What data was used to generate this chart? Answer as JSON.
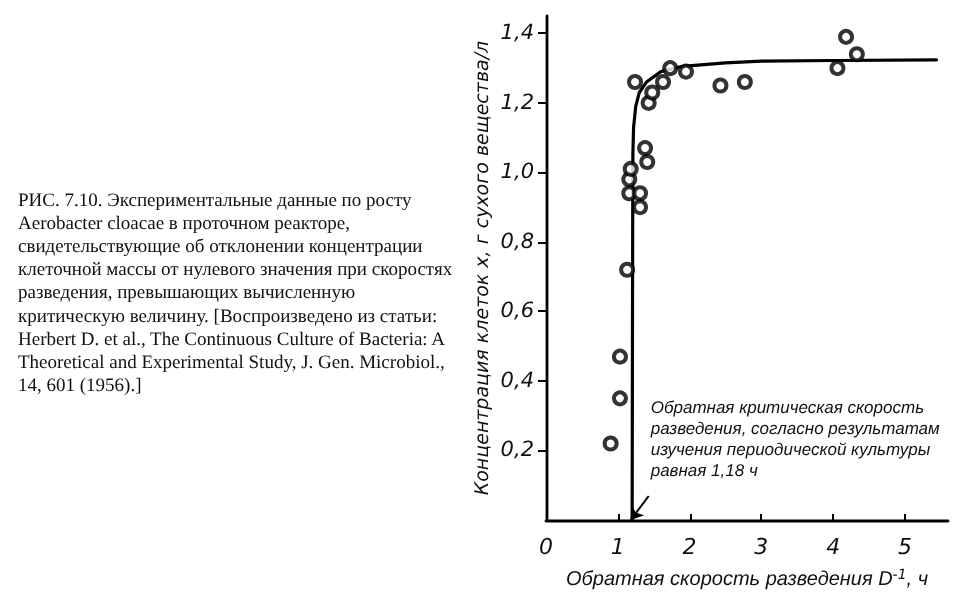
{
  "chart_data": {
    "type": "scatter",
    "title": "РИС. 7.10. Экспериментальные данные по росту Aerobacter cloacae в проточном реакторе, свидетельствующие об отклонении концентрации клеточной массы от нулевого значения при скоростях разведения, превышающих вычисленную критическую величину. [Воспроизведено из статьи: Herbert D. et al., The Continuous Culture of Bacteria: A Theoretical and Experimental Study, J. Gen. Microbiol., 14, 601 (1956).]",
    "xlabel": "Обратная скорость разведения D$^{-1}$, ч",
    "ylabel": "Концентрация клеток x, г сухого вещества/л",
    "annotations": [
      {
        "text": "Обратная критическая скорость разведения, согласно результатам изучения периодической культуры равная 1,18 ч",
        "x": 1.18,
        "y": 0
      }
    ],
    "xlim": [
      0,
      5.6
    ],
    "xticks": [
      0,
      1,
      2,
      3,
      4,
      5
    ],
    "ylim": [
      0,
      1.45
    ],
    "yticks": [
      {
        "value": 0.2,
        "label": "0,2"
      },
      {
        "value": 0.4,
        "label": "0,4"
      },
      {
        "value": 0.6,
        "label": "0,6"
      },
      {
        "value": 0.8,
        "label": "0,8"
      },
      {
        "value": 1.0,
        "label": "1,0"
      },
      {
        "value": 1.2,
        "label": "1,2"
      },
      {
        "value": 1.4,
        "label": "1,4"
      }
    ],
    "grid": false,
    "marker": "circle",
    "series": [
      {
        "color": "#000000",
        "x": [
          0.9,
          1.03,
          1.03,
          1.13,
          1.16,
          1.16,
          1.18,
          1.24,
          1.31,
          1.31,
          1.38,
          1.41,
          1.43,
          1.48,
          1.63,
          1.73,
          1.95,
          2.43,
          2.77,
          4.06,
          4.18,
          4.33
        ],
        "values": [
          0.22,
          0.35,
          0.47,
          0.72,
          0.94,
          0.98,
          1.01,
          1.26,
          0.94,
          0.9,
          1.07,
          1.03,
          1.2,
          1.23,
          1.26,
          1.3,
          1.29,
          1.25,
          1.26,
          1.3,
          1.39,
          1.34
        ]
      },
      {
        "type": "line",
        "color": "#000000",
        "marker": "none",
        "line_style": "solid",
        "x": [
          1.2,
          1.205,
          1.21,
          1.22,
          1.25,
          1.3,
          1.4,
          1.6,
          1.9,
          2.5,
          3,
          4,
          5.44
        ],
        "values": [
          0,
          0.6,
          1.05,
          1.13,
          1.19,
          1.23,
          1.26,
          1.29,
          1.305,
          1.315,
          1.32,
          1.322,
          1.324
        ]
      }
    ]
  }
}
